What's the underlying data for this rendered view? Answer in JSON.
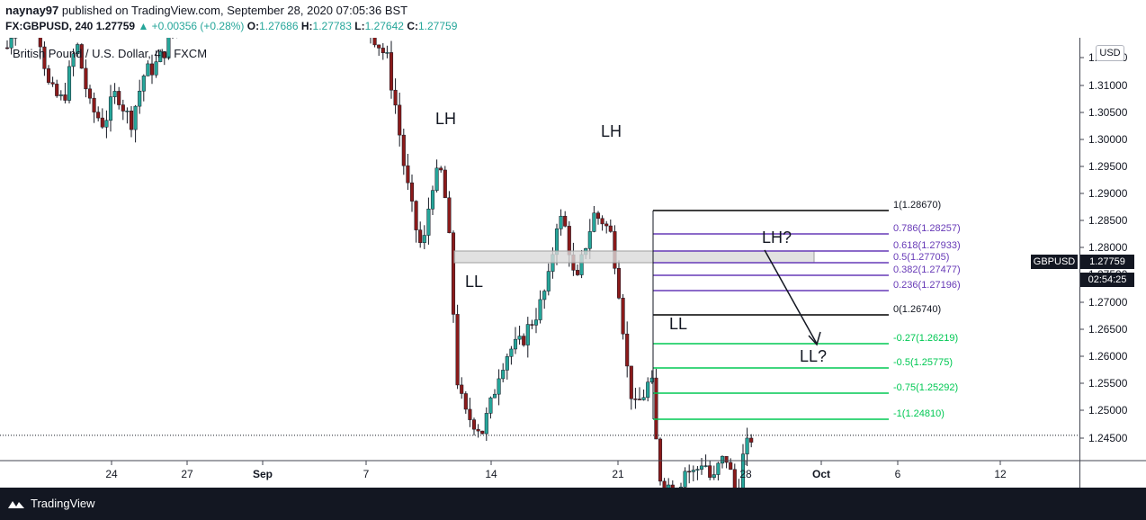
{
  "header": {
    "author": "naynay97",
    "published": "published on TradingView.com, September 28, 2020 07:05:36 BST",
    "symbol": "FX:GBPUSD, 240",
    "last": "1.27759",
    "change": "+0.00356 (+0.28%)",
    "o_label": "O:",
    "o_value": "1.27686",
    "h_label": "H:",
    "h_value": "1.27783",
    "l_label": "L:",
    "l_value": "1.27642",
    "c_label": "C:",
    "c_value": "1.27759"
  },
  "legend_title": "British Pound / U.S. Dollar, 4h, FXCM",
  "currency_badge": "USD",
  "price_tags": {
    "symbol": "GBPUSD",
    "price": "1.27759",
    "timer": "02:54:25"
  },
  "footer": {
    "brand": "TradingView"
  },
  "colors": {
    "up": "#26a69a",
    "down": "#8b1a1a",
    "fib_purple": "#673ab7",
    "fib_green": "#00c853",
    "fib_black": "#000000",
    "zone": "#d9d9d9"
  },
  "chart_data": {
    "type": "candlestick",
    "symbol": "GBPUSD",
    "timeframe": "4h",
    "price_axis_ticks": [
      "1.31500",
      "1.31000",
      "1.30500",
      "1.30000",
      "1.29500",
      "1.29000",
      "1.28500",
      "1.28000",
      "1.27500",
      "1.27000",
      "1.26500",
      "1.26000",
      "1.25500",
      "1.25000",
      "1.24500"
    ],
    "time_axis_ticks": [
      "24",
      "27",
      "Sep",
      "7",
      "14",
      "21",
      "28",
      "Oct",
      "6",
      "12"
    ],
    "fib_levels": [
      {
        "label": "1(1.28670)",
        "value": 1.2867,
        "color": "#000000"
      },
      {
        "label": "0.786(1.28257)",
        "value": 1.28257,
        "color": "#673ab7"
      },
      {
        "label": "0.618(1.27933)",
        "value": 1.27933,
        "color": "#673ab7"
      },
      {
        "label": "0.5(1.27705)",
        "value": 1.27705,
        "color": "#673ab7"
      },
      {
        "label": "0.382(1.27477)",
        "value": 1.27477,
        "color": "#673ab7"
      },
      {
        "label": "0.236(1.27196)",
        "value": 1.27196,
        "color": "#673ab7"
      },
      {
        "label": "0(1.26740)",
        "value": 1.2674,
        "color": "#000000"
      },
      {
        "label": "-0.27(1.26219)",
        "value": 1.26219,
        "color": "#00c853"
      },
      {
        "label": "-0.5(1.25775)",
        "value": 1.25775,
        "color": "#00c853"
      },
      {
        "label": "-0.75(1.25292)",
        "value": 1.25292,
        "color": "#00c853"
      },
      {
        "label": "-1(1.24810)",
        "value": 1.2481,
        "color": "#00c853"
      }
    ],
    "annotations": [
      "LH",
      "LH",
      "LL",
      "LL",
      "LH?",
      "LL?"
    ],
    "last_price": 1.27759
  }
}
